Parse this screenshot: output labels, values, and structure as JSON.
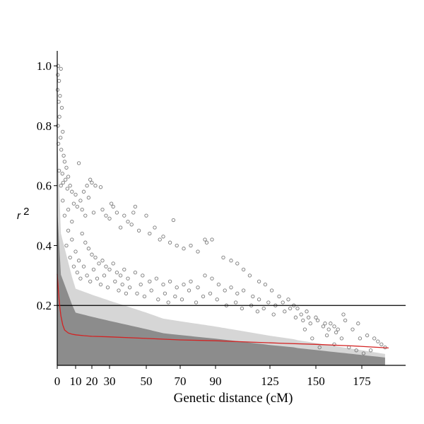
{
  "chart_data": {
    "type": "scatter",
    "title": "",
    "xlabel": "Genetic distance (cM)",
    "ylabel": "r2",
    "xlim": [
      0,
      192
    ],
    "ylim": [
      0,
      1.05
    ],
    "x_ticks": [
      {
        "value": 0,
        "label": "0"
      },
      {
        "value": 10,
        "label": "10"
      },
      {
        "value": 20,
        "label": "20"
      },
      {
        "value": 30,
        "label": "30"
      },
      {
        "value": 50,
        "label": "50"
      },
      {
        "value": 70,
        "label": "70"
      },
      {
        "value": 90,
        "label": "90"
      },
      {
        "value": 125,
        "label": "125"
      },
      {
        "value": 150,
        "label": "150"
      },
      {
        "value": 175,
        "label": "175"
      }
    ],
    "y_ticks": [
      {
        "value": 0.2,
        "label": "0.2"
      },
      {
        "value": 0.4,
        "label": "0.4"
      },
      {
        "value": 0.6,
        "label": "0.6"
      },
      {
        "value": 0.8,
        "label": "0.8"
      },
      {
        "value": 1.0,
        "label": "1.0"
      }
    ],
    "threshold": {
      "y": 0.2,
      "color": "#000000"
    },
    "marker_color": "#7a7a7a",
    "fit_color": "#d32222",
    "grid": false,
    "series": [
      {
        "type": "scatter",
        "points": [
          [
            0.5,
            1.0
          ],
          [
            2,
            0.99
          ],
          [
            0.3,
            0.97
          ],
          [
            1,
            0.95
          ],
          [
            0.2,
            0.92
          ],
          [
            1.5,
            0.9
          ],
          [
            0.8,
            0.88
          ],
          [
            2.5,
            0.86
          ],
          [
            1.2,
            0.83
          ],
          [
            0.4,
            0.8
          ],
          [
            3,
            0.78
          ],
          [
            1.8,
            0.76
          ],
          [
            0.6,
            0.74
          ],
          [
            2.2,
            0.72
          ],
          [
            3.5,
            0.7
          ],
          [
            4,
            0.68
          ],
          [
            5,
            0.66
          ],
          [
            2.8,
            0.64
          ],
          [
            6,
            0.63
          ],
          [
            4.5,
            0.62
          ],
          [
            3.2,
            0.61
          ],
          [
            7,
            0.6
          ],
          [
            5.5,
            0.59
          ],
          [
            8,
            0.58
          ],
          [
            12,
            0.675
          ],
          [
            19,
            0.62
          ],
          [
            20,
            0.61
          ],
          [
            22,
            0.6
          ],
          [
            17,
            0.6
          ],
          [
            15,
            0.58
          ],
          [
            10,
            0.57
          ],
          [
            25,
            0.595
          ],
          [
            18,
            0.56
          ],
          [
            13,
            0.55
          ],
          [
            9,
            0.54
          ],
          [
            11,
            0.53
          ],
          [
            26,
            0.52
          ],
          [
            14,
            0.52
          ],
          [
            21,
            0.51
          ],
          [
            16,
            0.5
          ],
          [
            28,
            0.5
          ],
          [
            31,
            0.54
          ],
          [
            32,
            0.53
          ],
          [
            34,
            0.51
          ],
          [
            44,
            0.53
          ],
          [
            43,
            0.51
          ],
          [
            38,
            0.5
          ],
          [
            30,
            0.49
          ],
          [
            40,
            0.48
          ],
          [
            42,
            0.47
          ],
          [
            36,
            0.46
          ],
          [
            50,
            0.5
          ],
          [
            46,
            0.45
          ],
          [
            52,
            0.44
          ],
          [
            55,
            0.46
          ],
          [
            66,
            0.485
          ],
          [
            58,
            0.42
          ],
          [
            60,
            0.43
          ],
          [
            64,
            0.41
          ],
          [
            68,
            0.4
          ],
          [
            72,
            0.39
          ],
          [
            76,
            0.4
          ],
          [
            80,
            0.38
          ],
          [
            84,
            0.42
          ],
          [
            85,
            0.41
          ],
          [
            88,
            0.42
          ],
          [
            95,
            0.36
          ],
          [
            100,
            0.35
          ],
          [
            104,
            0.34
          ],
          [
            108,
            0.32
          ],
          [
            112,
            0.3
          ],
          [
            118,
            0.28
          ],
          [
            122,
            0.27
          ],
          [
            126,
            0.25
          ],
          [
            130,
            0.23
          ],
          [
            135,
            0.22
          ],
          [
            138,
            0.2
          ],
          [
            140,
            0.19
          ],
          [
            145,
            0.18
          ],
          [
            150,
            0.16
          ],
          [
            155,
            0.14
          ],
          [
            160,
            0.13
          ],
          [
            165,
            0.17
          ],
          [
            166,
            0.15
          ],
          [
            170,
            0.12
          ],
          [
            173,
            0.14
          ],
          [
            178,
            0.1
          ],
          [
            182,
            0.09
          ],
          [
            186,
            0.07
          ],
          [
            188,
            0.06
          ],
          [
            164,
            0.09
          ],
          [
            168,
            0.06
          ],
          [
            172,
            0.05
          ],
          [
            176,
            0.04
          ],
          [
            180,
            0.05
          ],
          [
            160,
            0.07
          ],
          [
            156,
            0.1
          ],
          [
            152,
            0.06
          ],
          [
            148,
            0.09
          ],
          [
            144,
            0.12
          ],
          [
            6,
            0.45
          ],
          [
            8,
            0.42
          ],
          [
            10,
            0.38
          ],
          [
            12,
            0.35
          ],
          [
            5,
            0.4
          ],
          [
            7,
            0.36
          ],
          [
            9,
            0.33
          ],
          [
            11,
            0.31
          ],
          [
            13,
            0.29
          ],
          [
            15,
            0.33
          ],
          [
            17,
            0.3
          ],
          [
            19,
            0.28
          ],
          [
            21,
            0.32
          ],
          [
            23,
            0.29
          ],
          [
            25,
            0.27
          ],
          [
            27,
            0.3
          ],
          [
            29,
            0.26
          ],
          [
            33,
            0.28
          ],
          [
            35,
            0.25
          ],
          [
            37,
            0.27
          ],
          [
            39,
            0.24
          ],
          [
            41,
            0.26
          ],
          [
            45,
            0.24
          ],
          [
            47,
            0.27
          ],
          [
            49,
            0.23
          ],
          [
            53,
            0.25
          ],
          [
            57,
            0.22
          ],
          [
            61,
            0.24
          ],
          [
            63,
            0.21
          ],
          [
            67,
            0.23
          ],
          [
            71,
            0.22
          ],
          [
            75,
            0.25
          ],
          [
            79,
            0.21
          ],
          [
            83,
            0.23
          ],
          [
            87,
            0.24
          ],
          [
            91,
            0.22
          ],
          [
            97,
            0.2
          ],
          [
            103,
            0.21
          ],
          [
            107,
            0.19
          ],
          [
            113,
            0.2
          ],
          [
            117,
            0.18
          ],
          [
            121,
            0.19
          ],
          [
            127,
            0.17
          ],
          [
            133,
            0.18
          ],
          [
            139,
            0.16
          ],
          [
            143,
            0.15
          ],
          [
            147,
            0.14
          ],
          [
            151,
            0.15
          ],
          [
            157,
            0.12
          ],
          [
            161,
            0.11
          ],
          [
            4,
            0.5
          ],
          [
            3,
            0.55
          ],
          [
            2,
            0.6
          ],
          [
            1,
            0.65
          ],
          [
            6,
            0.52
          ],
          [
            8,
            0.48
          ],
          [
            14,
            0.44
          ],
          [
            16,
            0.41
          ],
          [
            18,
            0.39
          ],
          [
            20,
            0.37
          ],
          [
            22,
            0.36
          ],
          [
            24,
            0.34
          ],
          [
            26,
            0.35
          ],
          [
            28,
            0.33
          ],
          [
            30,
            0.32
          ],
          [
            32,
            0.34
          ],
          [
            34,
            0.31
          ],
          [
            36,
            0.3
          ],
          [
            38,
            0.32
          ],
          [
            40,
            0.29
          ],
          [
            44,
            0.31
          ],
          [
            48,
            0.3
          ],
          [
            52,
            0.28
          ],
          [
            56,
            0.29
          ],
          [
            60,
            0.27
          ],
          [
            64,
            0.28
          ],
          [
            68,
            0.26
          ],
          [
            72,
            0.27
          ],
          [
            76,
            0.28
          ],
          [
            80,
            0.26
          ],
          [
            84,
            0.3
          ],
          [
            88,
            0.29
          ],
          [
            92,
            0.27
          ],
          [
            96,
            0.25
          ],
          [
            100,
            0.26
          ],
          [
            104,
            0.24
          ],
          [
            108,
            0.25
          ],
          [
            114,
            0.23
          ],
          [
            118,
            0.22
          ],
          [
            124,
            0.21
          ],
          [
            128,
            0.2
          ],
          [
            132,
            0.21
          ],
          [
            136,
            0.19
          ],
          [
            142,
            0.17
          ],
          [
            146,
            0.16
          ],
          [
            154,
            0.13
          ],
          [
            158,
            0.14
          ],
          [
            162,
            0.12
          ],
          [
            174,
            0.09
          ],
          [
            184,
            0.08
          ]
        ]
      },
      {
        "type": "line",
        "name": "fit",
        "x": [
          0,
          0.5,
          1,
          1.5,
          2,
          3,
          4,
          6,
          8,
          10,
          15,
          20,
          30,
          50,
          70,
          90,
          110,
          130,
          150,
          170,
          190
        ],
        "y": [
          0.305,
          0.26,
          0.22,
          0.19,
          0.165,
          0.135,
          0.118,
          0.108,
          0.104,
          0.102,
          0.099,
          0.097,
          0.095,
          0.09,
          0.085,
          0.082,
          0.078,
          0.074,
          0.07,
          0.065,
          0.058
        ]
      }
    ]
  }
}
